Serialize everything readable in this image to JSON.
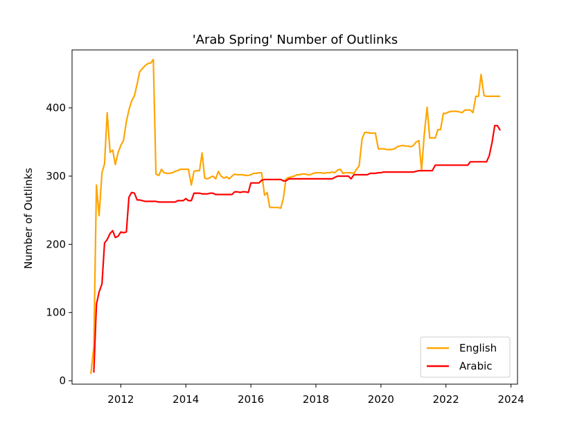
{
  "chart_data": {
    "type": "line",
    "title": "'Arab Spring' Number of Outlinks",
    "xlabel": "",
    "ylabel": "Number of Outlinks",
    "xlim": [
      2010.5,
      2024.2
    ],
    "ylim": [
      -5,
      485
    ],
    "xticks": [
      2012,
      2014,
      2016,
      2018,
      2020,
      2022,
      2024
    ],
    "yticks": [
      0,
      100,
      200,
      300,
      400
    ],
    "grid": false,
    "legend": "lower-right",
    "series": [
      {
        "name": "English",
        "color": "#FFA500",
        "points": [
          [
            2011.08,
            10
          ],
          [
            2011.17,
            50
          ],
          [
            2011.25,
            287
          ],
          [
            2011.33,
            242
          ],
          [
            2011.42,
            305
          ],
          [
            2011.5,
            318
          ],
          [
            2011.58,
            393
          ],
          [
            2011.67,
            335
          ],
          [
            2011.75,
            338
          ],
          [
            2011.83,
            317
          ],
          [
            2011.92,
            335
          ],
          [
            2012.0,
            345
          ],
          [
            2012.08,
            352
          ],
          [
            2012.17,
            380
          ],
          [
            2012.25,
            397
          ],
          [
            2012.33,
            410
          ],
          [
            2012.42,
            418
          ],
          [
            2012.5,
            435
          ],
          [
            2012.58,
            453
          ],
          [
            2012.67,
            458
          ],
          [
            2012.75,
            462
          ],
          [
            2012.83,
            465
          ],
          [
            2012.92,
            466
          ],
          [
            2013.0,
            471
          ],
          [
            2013.08,
            303
          ],
          [
            2013.17,
            301
          ],
          [
            2013.25,
            310
          ],
          [
            2013.33,
            305
          ],
          [
            2013.42,
            304
          ],
          [
            2013.5,
            304
          ],
          [
            2013.58,
            305
          ],
          [
            2013.67,
            307
          ],
          [
            2013.75,
            308
          ],
          [
            2013.83,
            310
          ],
          [
            2013.92,
            310
          ],
          [
            2014.0,
            310
          ],
          [
            2014.08,
            310
          ],
          [
            2014.17,
            287
          ],
          [
            2014.25,
            307
          ],
          [
            2014.33,
            308
          ],
          [
            2014.42,
            308
          ],
          [
            2014.5,
            334
          ],
          [
            2014.58,
            297
          ],
          [
            2014.67,
            296
          ],
          [
            2014.75,
            298
          ],
          [
            2014.83,
            300
          ],
          [
            2014.92,
            296
          ],
          [
            2015.0,
            307
          ],
          [
            2015.08,
            300
          ],
          [
            2015.17,
            297
          ],
          [
            2015.25,
            299
          ],
          [
            2015.33,
            296
          ],
          [
            2015.42,
            300
          ],
          [
            2015.5,
            303
          ],
          [
            2015.58,
            302
          ],
          [
            2015.67,
            302
          ],
          [
            2015.75,
            302
          ],
          [
            2015.83,
            301
          ],
          [
            2015.92,
            301
          ],
          [
            2016.0,
            302
          ],
          [
            2016.08,
            304
          ],
          [
            2016.17,
            304
          ],
          [
            2016.25,
            305
          ],
          [
            2016.33,
            305
          ],
          [
            2016.42,
            272
          ],
          [
            2016.5,
            276
          ],
          [
            2016.58,
            254
          ],
          [
            2016.67,
            254
          ],
          [
            2016.75,
            254
          ],
          [
            2016.83,
            254
          ],
          [
            2016.92,
            253
          ],
          [
            2017.0,
            268
          ],
          [
            2017.08,
            296
          ],
          [
            2017.17,
            298
          ],
          [
            2017.25,
            299
          ],
          [
            2017.33,
            300
          ],
          [
            2017.42,
            302
          ],
          [
            2017.5,
            302
          ],
          [
            2017.58,
            303
          ],
          [
            2017.67,
            303
          ],
          [
            2017.75,
            302
          ],
          [
            2017.83,
            302
          ],
          [
            2017.92,
            304
          ],
          [
            2018.0,
            305
          ],
          [
            2018.08,
            305
          ],
          [
            2018.17,
            305
          ],
          [
            2018.25,
            304
          ],
          [
            2018.33,
            305
          ],
          [
            2018.42,
            305
          ],
          [
            2018.5,
            306
          ],
          [
            2018.58,
            305
          ],
          [
            2018.67,
            309
          ],
          [
            2018.75,
            310
          ],
          [
            2018.83,
            304
          ],
          [
            2018.92,
            305
          ],
          [
            2019.0,
            305
          ],
          [
            2019.08,
            305
          ],
          [
            2019.17,
            304
          ],
          [
            2019.25,
            310
          ],
          [
            2019.33,
            315
          ],
          [
            2019.42,
            355
          ],
          [
            2019.5,
            364
          ],
          [
            2019.58,
            364
          ],
          [
            2019.67,
            363
          ],
          [
            2019.75,
            363
          ],
          [
            2019.83,
            363
          ],
          [
            2019.92,
            340
          ],
          [
            2020.0,
            340
          ],
          [
            2020.08,
            340
          ],
          [
            2020.17,
            339
          ],
          [
            2020.25,
            339
          ],
          [
            2020.33,
            339
          ],
          [
            2020.42,
            340
          ],
          [
            2020.5,
            343
          ],
          [
            2020.58,
            344
          ],
          [
            2020.67,
            345
          ],
          [
            2020.75,
            344
          ],
          [
            2020.83,
            344
          ],
          [
            2020.92,
            343
          ],
          [
            2021.0,
            345
          ],
          [
            2021.08,
            350
          ],
          [
            2021.17,
            352
          ],
          [
            2021.25,
            308
          ],
          [
            2021.33,
            360
          ],
          [
            2021.42,
            401
          ],
          [
            2021.5,
            356
          ],
          [
            2021.58,
            356
          ],
          [
            2021.67,
            356
          ],
          [
            2021.75,
            368
          ],
          [
            2021.83,
            368
          ],
          [
            2021.92,
            392
          ],
          [
            2022.0,
            392
          ],
          [
            2022.08,
            394
          ],
          [
            2022.17,
            395
          ],
          [
            2022.25,
            395
          ],
          [
            2022.33,
            395
          ],
          [
            2022.42,
            394
          ],
          [
            2022.5,
            393
          ],
          [
            2022.58,
            397
          ],
          [
            2022.67,
            397
          ],
          [
            2022.75,
            397
          ],
          [
            2022.83,
            393
          ],
          [
            2022.92,
            417
          ],
          [
            2023.0,
            417
          ],
          [
            2023.08,
            449
          ],
          [
            2023.17,
            418
          ],
          [
            2023.25,
            417
          ],
          [
            2023.33,
            417
          ],
          [
            2023.42,
            417
          ],
          [
            2023.5,
            417
          ],
          [
            2023.58,
            417
          ],
          [
            2023.67,
            417
          ]
        ]
      },
      {
        "name": "Arabic",
        "color": "#FF0000",
        "points": [
          [
            2011.17,
            12
          ],
          [
            2011.25,
            112
          ],
          [
            2011.33,
            130
          ],
          [
            2011.42,
            142
          ],
          [
            2011.5,
            202
          ],
          [
            2011.58,
            207
          ],
          [
            2011.67,
            216
          ],
          [
            2011.75,
            220
          ],
          [
            2011.83,
            210
          ],
          [
            2011.92,
            212
          ],
          [
            2012.0,
            218
          ],
          [
            2012.08,
            217
          ],
          [
            2012.17,
            218
          ],
          [
            2012.25,
            269
          ],
          [
            2012.33,
            276
          ],
          [
            2012.42,
            275
          ],
          [
            2012.5,
            265
          ],
          [
            2012.58,
            265
          ],
          [
            2012.67,
            264
          ],
          [
            2012.75,
            263
          ],
          [
            2012.83,
            263
          ],
          [
            2012.92,
            263
          ],
          [
            2013.0,
            263
          ],
          [
            2013.08,
            263
          ],
          [
            2013.17,
            262
          ],
          [
            2013.25,
            262
          ],
          [
            2013.33,
            262
          ],
          [
            2013.42,
            262
          ],
          [
            2013.5,
            262
          ],
          [
            2013.58,
            262
          ],
          [
            2013.67,
            262
          ],
          [
            2013.75,
            264
          ],
          [
            2013.83,
            264
          ],
          [
            2013.92,
            264
          ],
          [
            2014.0,
            267
          ],
          [
            2014.08,
            264
          ],
          [
            2014.17,
            264
          ],
          [
            2014.25,
            275
          ],
          [
            2014.33,
            275
          ],
          [
            2014.42,
            275
          ],
          [
            2014.5,
            274
          ],
          [
            2014.58,
            274
          ],
          [
            2014.67,
            274
          ],
          [
            2014.75,
            275
          ],
          [
            2014.83,
            275
          ],
          [
            2014.92,
            273
          ],
          [
            2015.0,
            273
          ],
          [
            2015.08,
            273
          ],
          [
            2015.17,
            273
          ],
          [
            2015.25,
            273
          ],
          [
            2015.33,
            273
          ],
          [
            2015.42,
            273
          ],
          [
            2015.5,
            277
          ],
          [
            2015.58,
            277
          ],
          [
            2015.67,
            276
          ],
          [
            2015.75,
            277
          ],
          [
            2015.83,
            277
          ],
          [
            2015.92,
            276
          ],
          [
            2016.0,
            290
          ],
          [
            2016.08,
            290
          ],
          [
            2016.17,
            290
          ],
          [
            2016.25,
            290
          ],
          [
            2016.33,
            294
          ],
          [
            2016.42,
            295
          ],
          [
            2016.5,
            295
          ],
          [
            2016.58,
            295
          ],
          [
            2016.67,
            295
          ],
          [
            2016.75,
            295
          ],
          [
            2016.83,
            295
          ],
          [
            2016.92,
            295
          ],
          [
            2017.0,
            293
          ],
          [
            2017.08,
            293
          ],
          [
            2017.17,
            296
          ],
          [
            2017.25,
            296
          ],
          [
            2017.33,
            296
          ],
          [
            2017.42,
            296
          ],
          [
            2017.5,
            296
          ],
          [
            2017.58,
            296
          ],
          [
            2017.67,
            296
          ],
          [
            2017.75,
            296
          ],
          [
            2017.83,
            296
          ],
          [
            2017.92,
            296
          ],
          [
            2018.0,
            296
          ],
          [
            2018.08,
            296
          ],
          [
            2018.17,
            296
          ],
          [
            2018.25,
            296
          ],
          [
            2018.33,
            296
          ],
          [
            2018.42,
            296
          ],
          [
            2018.5,
            296
          ],
          [
            2018.58,
            298
          ],
          [
            2018.67,
            300
          ],
          [
            2018.75,
            300
          ],
          [
            2018.83,
            300
          ],
          [
            2018.92,
            300
          ],
          [
            2019.0,
            300
          ],
          [
            2019.08,
            296
          ],
          [
            2019.17,
            302
          ],
          [
            2019.25,
            302
          ],
          [
            2019.33,
            302
          ],
          [
            2019.42,
            302
          ],
          [
            2019.5,
            302
          ],
          [
            2019.58,
            302
          ],
          [
            2019.67,
            304
          ],
          [
            2019.75,
            304
          ],
          [
            2019.83,
            304
          ],
          [
            2019.92,
            305
          ],
          [
            2020.0,
            305
          ],
          [
            2020.08,
            306
          ],
          [
            2020.17,
            306
          ],
          [
            2020.25,
            306
          ],
          [
            2020.33,
            306
          ],
          [
            2020.42,
            306
          ],
          [
            2020.5,
            306
          ],
          [
            2020.58,
            306
          ],
          [
            2020.67,
            306
          ],
          [
            2020.75,
            306
          ],
          [
            2020.83,
            306
          ],
          [
            2020.92,
            306
          ],
          [
            2021.0,
            306
          ],
          [
            2021.08,
            307
          ],
          [
            2021.17,
            308
          ],
          [
            2021.25,
            308
          ],
          [
            2021.33,
            308
          ],
          [
            2021.42,
            308
          ],
          [
            2021.5,
            308
          ],
          [
            2021.58,
            308
          ],
          [
            2021.67,
            316
          ],
          [
            2021.75,
            316
          ],
          [
            2021.83,
            316
          ],
          [
            2021.92,
            316
          ],
          [
            2022.0,
            316
          ],
          [
            2022.08,
            316
          ],
          [
            2022.17,
            316
          ],
          [
            2022.25,
            316
          ],
          [
            2022.33,
            316
          ],
          [
            2022.42,
            316
          ],
          [
            2022.5,
            316
          ],
          [
            2022.58,
            316
          ],
          [
            2022.67,
            316
          ],
          [
            2022.75,
            321
          ],
          [
            2022.83,
            321
          ],
          [
            2022.92,
            321
          ],
          [
            2023.0,
            321
          ],
          [
            2023.08,
            321
          ],
          [
            2023.17,
            321
          ],
          [
            2023.25,
            321
          ],
          [
            2023.33,
            330
          ],
          [
            2023.42,
            350
          ],
          [
            2023.5,
            374
          ],
          [
            2023.58,
            374
          ],
          [
            2023.67,
            367
          ]
        ]
      }
    ]
  }
}
